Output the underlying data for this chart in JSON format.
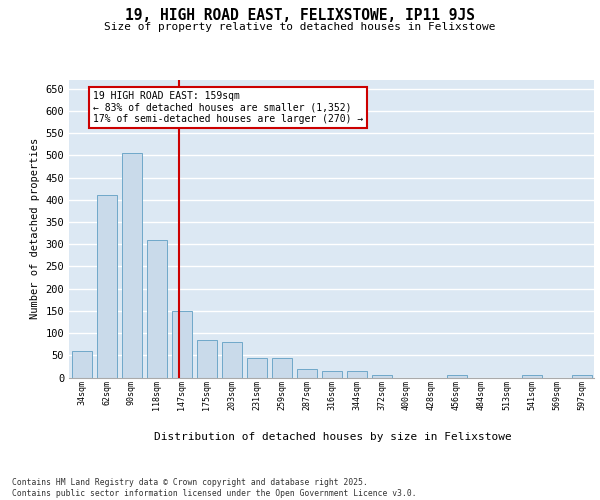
{
  "title": "19, HIGH ROAD EAST, FELIXSTOWE, IP11 9JS",
  "subtitle": "Size of property relative to detached houses in Felixstowe",
  "xlabel": "Distribution of detached houses by size in Felixstowe",
  "ylabel": "Number of detached properties",
  "categories": [
    "34sqm",
    "62sqm",
    "90sqm",
    "118sqm",
    "147sqm",
    "175sqm",
    "203sqm",
    "231sqm",
    "259sqm",
    "287sqm",
    "316sqm",
    "344sqm",
    "372sqm",
    "400sqm",
    "428sqm",
    "456sqm",
    "484sqm",
    "513sqm",
    "541sqm",
    "569sqm",
    "597sqm"
  ],
  "values": [
    60,
    410,
    505,
    310,
    150,
    85,
    80,
    45,
    45,
    20,
    15,
    15,
    5,
    0,
    0,
    5,
    0,
    0,
    5,
    0,
    5
  ],
  "bar_color": "#c9daea",
  "bar_edge_color": "#6fa8c9",
  "bg_color": "#dce8f3",
  "grid_color": "#ffffff",
  "vline_x_index": 3.88,
  "vline_color": "#cc0000",
  "annotation_line1": "19 HIGH ROAD EAST: 159sqm",
  "annotation_line2": "← 83% of detached houses are smaller (1,352)",
  "annotation_line3": "17% of semi-detached houses are larger (270) →",
  "annotation_box_color": "#cc0000",
  "footnote": "Contains HM Land Registry data © Crown copyright and database right 2025.\nContains public sector information licensed under the Open Government Licence v3.0.",
  "ylim": [
    0,
    670
  ],
  "yticks": [
    0,
    50,
    100,
    150,
    200,
    250,
    300,
    350,
    400,
    450,
    500,
    550,
    600,
    650
  ]
}
